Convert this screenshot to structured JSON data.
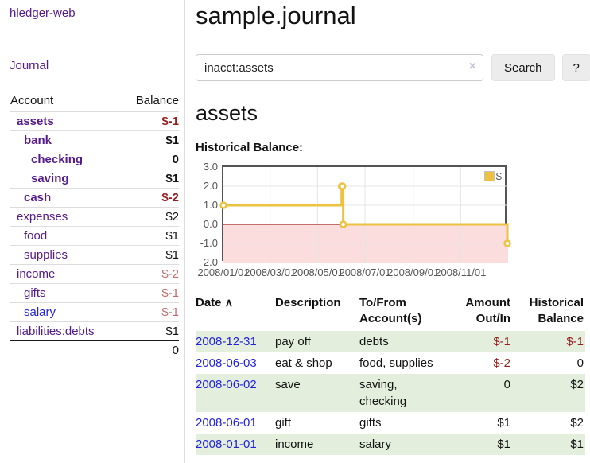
{
  "app": {
    "title": "hledger-web"
  },
  "sidebar": {
    "journal_link": "Journal",
    "accounts_table": {
      "headers": {
        "account": "Account",
        "balance": "Balance"
      },
      "rows": [
        {
          "name": "assets",
          "balance": "$-1"
        },
        {
          "name": "bank",
          "balance": "$1"
        },
        {
          "name": "checking",
          "balance": "0"
        },
        {
          "name": "saving",
          "balance": "$1"
        },
        {
          "name": "cash",
          "balance": "$-2"
        },
        {
          "name": "expenses",
          "balance": "$2"
        },
        {
          "name": "food",
          "balance": "$1"
        },
        {
          "name": "supplies",
          "balance": "$1"
        },
        {
          "name": "income",
          "balance": "$-2"
        },
        {
          "name": "gifts",
          "balance": "$-1"
        },
        {
          "name": "salary",
          "balance": "$-1"
        },
        {
          "name": "liabilities:debts",
          "balance": "$1"
        }
      ],
      "total": "0"
    }
  },
  "main": {
    "title": "sample.journal",
    "search": {
      "value": "inacct:assets",
      "clear_icon": "×",
      "search_button": "Search",
      "help_button": "?"
    },
    "account_heading": "assets",
    "chart_label": "Historical Balance:"
  },
  "chart_data": {
    "type": "line",
    "step": "after",
    "title": "Historical Balance",
    "series": [
      {
        "name": "$",
        "color": "#edc240",
        "points": [
          [
            "2008-01-01",
            1
          ],
          [
            "2008-06-01",
            2
          ],
          [
            "2008-06-02",
            2
          ],
          [
            "2008-06-03",
            0
          ],
          [
            "2008-12-31",
            -1
          ]
        ]
      }
    ],
    "x_range": [
      "2008-01-01",
      "2009-01-01"
    ],
    "xticks": [
      {
        "date": "2008-01-01",
        "label": "2008/01/01"
      },
      {
        "date": "2008-03-01",
        "label": "2008/03/01"
      },
      {
        "date": "2008-05-01",
        "label": "2008/05/01"
      },
      {
        "date": "2008-07-01",
        "label": "2008/07/01"
      },
      {
        "date": "2008-09-01",
        "label": "2008/09/01"
      },
      {
        "date": "2008-11-01",
        "label": "2008/11/01"
      }
    ],
    "yticks": [
      {
        "value": 3,
        "label": "3.0"
      },
      {
        "value": 2,
        "label": "2.0"
      },
      {
        "value": 1,
        "label": "1.0"
      },
      {
        "value": 0,
        "label": "0.0"
      },
      {
        "value": -1,
        "label": "-1.0"
      },
      {
        "value": -2,
        "label": "-2.0"
      }
    ],
    "ylim": [
      -2,
      3
    ],
    "legend": {
      "label": "$",
      "position": "top-right"
    },
    "grid": true,
    "colors": {
      "negative_fill": "#fbdddd",
      "zero_line": "#8b0000",
      "gridline": "#e4e4e4",
      "plot_border": "#545454"
    }
  },
  "register": {
    "headers": {
      "date": "Date",
      "sort_icon": "∧",
      "description": "Description",
      "tofrom1": "To/From",
      "tofrom2": "Account(s)",
      "amount1": "Amount",
      "amount2": "Out/In",
      "hist1": "Historical",
      "hist2": "Balance"
    },
    "rows": [
      {
        "date": "2008-12-31",
        "description": "pay off",
        "accounts": "debts",
        "amount": "$-1",
        "balance": "$-1"
      },
      {
        "date": "2008-06-03",
        "description": "eat & shop",
        "accounts": "food, supplies",
        "amount": "$-2",
        "balance": "0"
      },
      {
        "date": "2008-06-02",
        "description": "save",
        "accounts": "saving,\nchecking",
        "amount": "0",
        "balance": "$2"
      },
      {
        "date": "2008-06-01",
        "description": "gift",
        "accounts": "gifts",
        "amount": "$1",
        "balance": "$2"
      },
      {
        "date": "2008-01-01",
        "description": "income",
        "accounts": "salary",
        "amount": "$1",
        "balance": "$1"
      }
    ]
  }
}
